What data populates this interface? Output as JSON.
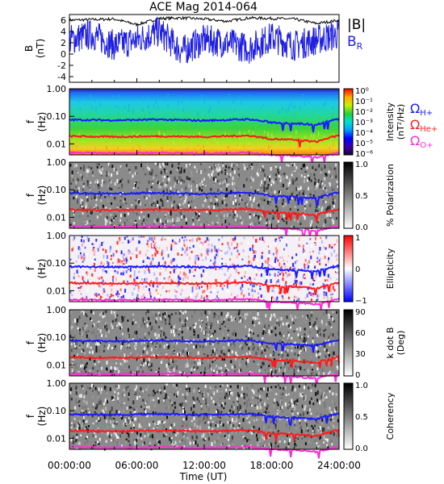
{
  "title": "ACE Mag 2014-064",
  "xaxis": {
    "label": "Time (UT)",
    "ticks": [
      "00:00:00",
      "06:00:00",
      "12:00:00",
      "18:00:00",
      "24:00:00"
    ],
    "range_hours": [
      0,
      24
    ]
  },
  "colors": {
    "B_total": "#000000",
    "B_R": "#1f1fe0",
    "omega_H": "#1a1aff",
    "omega_He": "#ff1a1a",
    "omega_O": "#ff2bd8"
  },
  "legends": {
    "B_total": "|B|",
    "B_R": "B",
    "B_R_sub": "R",
    "omega_H": "Ω",
    "omega_H_sub": "H+",
    "omega_He": "Ω",
    "omega_He_sub": "He+",
    "omega_O": "Ω",
    "omega_O_sub": "O+"
  },
  "panels": [
    {
      "id": "b",
      "ylabel": "B",
      "ylabel2": "(nT)",
      "ticks": [
        "6",
        "4",
        "2",
        "0",
        "-2",
        "-4"
      ]
    },
    {
      "id": "intensity",
      "ylabel": "f",
      "ylabel2": "(Hz)",
      "ticks": [
        "1.00",
        "0.10",
        "0.01"
      ],
      "cbar_label": "Intensity",
      "cbar_label2": "(nT²/Hz)",
      "cbar_ticks": [
        "10⁰",
        "10⁻¹",
        "10⁻²",
        "10⁻³",
        "10⁻⁴",
        "10⁻⁵",
        "10⁻⁶"
      ]
    },
    {
      "id": "polarization",
      "ylabel": "f",
      "ylabel2": "(Hz)",
      "ticks": [
        "1.00",
        "0.10",
        "0.01"
      ],
      "cbar_label": "% Polarization",
      "cbar_ticks": [
        "1.0",
        "0.5",
        "0.0"
      ]
    },
    {
      "id": "ellipticity",
      "ylabel": "f",
      "ylabel2": "(Hz)",
      "ticks": [
        "1.00",
        "0.10",
        "0.01"
      ],
      "cbar_label": "Ellipticity",
      "cbar_ticks": [
        "1",
        "0",
        "−1"
      ]
    },
    {
      "id": "kdotb",
      "ylabel": "f",
      "ylabel2": "(Hz)",
      "ticks": [
        "1.00",
        "0.10",
        "0.01"
      ],
      "cbar_label": "k dot B",
      "cbar_label2": "(Deg)",
      "cbar_ticks": [
        "90",
        "60",
        "30",
        "0"
      ]
    },
    {
      "id": "coherency",
      "ylabel": "f",
      "ylabel2": "(Hz)",
      "ticks": [
        "1.00",
        "0.10",
        "0.01"
      ],
      "cbar_label": "Coherency",
      "cbar_ticks": [
        "1.0",
        "0.5",
        "0.0"
      ]
    }
  ],
  "chart_data": [
    {
      "type": "line",
      "title": "ACE Mag 2014-064",
      "xlabel": "Time (UT)",
      "ylabel": "B (nT)",
      "xlim": [
        0,
        24
      ],
      "ylim": [
        -5,
        7
      ],
      "x": [
        0,
        2,
        4,
        6,
        8,
        10,
        12,
        14,
        16,
        18,
        20,
        22,
        24
      ],
      "series": [
        {
          "name": "|B|",
          "values": [
            6.0,
            6.1,
            6.2,
            5.2,
            6.3,
            6.4,
            6.2,
            5.8,
            6.4,
            6.3,
            6.2,
            5.4,
            6.0
          ]
        },
        {
          "name": "B_R",
          "values": [
            2.5,
            3.5,
            1.5,
            2.5,
            4.0,
            0.5,
            2.5,
            2.0,
            1.0,
            3.0,
            1.5,
            2.5,
            3.5
          ]
        }
      ]
    },
    {
      "type": "heatmap",
      "name": "Intensity",
      "ylabel": "f (Hz)",
      "yscale": "log",
      "ylim": [
        0.004,
        1.0
      ],
      "colorscale_range": [
        "10^-6",
        "10^0"
      ],
      "x": [
        0,
        4,
        8,
        12,
        16,
        18,
        20,
        22,
        24
      ],
      "series": [
        {
          "name": "ΩH+",
          "values": [
            0.075,
            0.072,
            0.076,
            0.07,
            0.078,
            0.06,
            0.055,
            0.05,
            0.08
          ]
        },
        {
          "name": "ΩHe+",
          "values": [
            0.019,
            0.018,
            0.019,
            0.018,
            0.02,
            0.015,
            0.014,
            0.012,
            0.02
          ]
        },
        {
          "name": "ΩO+",
          "values": [
            0.0048,
            0.0046,
            0.0048,
            0.0045,
            0.0049,
            0.004,
            0.0038,
            0.0032,
            0.005
          ]
        }
      ]
    },
    {
      "type": "heatmap",
      "name": "% Polarization",
      "ylabel": "f (Hz)",
      "yscale": "log",
      "colorscale_range": [
        0.0,
        1.0
      ]
    },
    {
      "type": "heatmap",
      "name": "Ellipticity",
      "ylabel": "f (Hz)",
      "yscale": "log",
      "colorscale_range": [
        -1,
        1
      ]
    },
    {
      "type": "heatmap",
      "name": "k dot B",
      "ylabel": "f (Hz)",
      "yscale": "log",
      "colorscale_range": [
        0,
        90
      ]
    },
    {
      "type": "heatmap",
      "name": "Coherency",
      "ylabel": "f (Hz)",
      "yscale": "log",
      "colorscale_range": [
        0.0,
        1.0
      ]
    }
  ]
}
